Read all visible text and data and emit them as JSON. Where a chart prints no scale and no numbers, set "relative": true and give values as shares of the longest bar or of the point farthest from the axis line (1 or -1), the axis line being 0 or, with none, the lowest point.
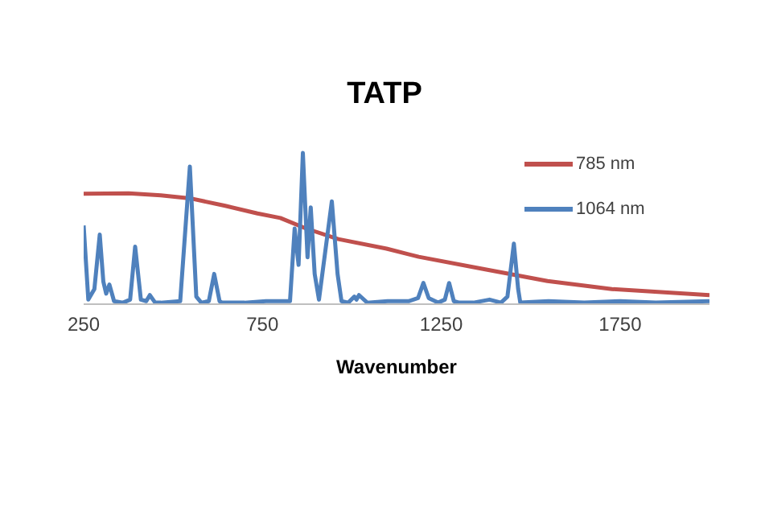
{
  "chart_data": {
    "type": "line",
    "title": "TATP",
    "xlabel": "Wavenumber",
    "relative": true,
    "xlim": [
      250,
      2000
    ],
    "xticks": [
      250,
      750,
      1250,
      1750
    ],
    "legend": "top right",
    "grid": false,
    "marker": "none",
    "line_style": "solid",
    "series": [
      {
        "name": "785 nm",
        "color": "#c0504d",
        "x": [
          250,
          376,
          466,
          547,
          646,
          736,
          800,
          872,
          962,
          1097,
          1187,
          1367,
          1547,
          1727,
          2000
        ],
        "values": [
          0.73,
          0.733,
          0.72,
          0.7,
          0.65,
          0.6,
          0.57,
          0.5,
          0.43,
          0.367,
          0.313,
          0.233,
          0.153,
          0.1,
          0.06
        ]
      },
      {
        "name": "1064 nm",
        "color": "#4f81bd",
        "x": [
          250,
          263,
          280,
          295,
          305,
          313,
          322,
          335,
          360,
          380,
          394,
          410,
          425,
          435,
          450,
          466,
          520,
          547,
          565,
          579,
          600,
          615,
          630,
          637,
          700,
          760,
          827,
          840,
          851,
          863,
          876,
          885,
          896,
          908,
          944,
          960,
          971,
          990,
          1007,
          1013,
          1020,
          1043,
          1100,
          1160,
          1185,
          1200,
          1215,
          1241,
          1260,
          1272,
          1285,
          1300,
          1340,
          1385,
          1417,
          1435,
          1453,
          1465,
          1471,
          1550,
          1650,
          1750,
          1850,
          2000
        ],
        "values": [
          0.52,
          0.03,
          0.1,
          0.46,
          0.15,
          0.07,
          0.13,
          0.02,
          0.01,
          0.03,
          0.38,
          0.03,
          0.02,
          0.06,
          0.01,
          0.01,
          0.02,
          0.91,
          0.05,
          0.01,
          0.02,
          0.2,
          0.02,
          0.01,
          0.01,
          0.02,
          0.02,
          0.5,
          0.26,
          1,
          0.31,
          0.64,
          0.2,
          0.03,
          0.68,
          0.2,
          0.02,
          0.01,
          0.05,
          0.03,
          0.06,
          0.01,
          0.02,
          0.02,
          0.04,
          0.14,
          0.04,
          0.01,
          0.03,
          0.14,
          0.02,
          0.01,
          0.01,
          0.03,
          0.01,
          0.05,
          0.4,
          0.1,
          0.01,
          0.02,
          0.01,
          0.02,
          0.01,
          0.02
        ]
      }
    ]
  }
}
